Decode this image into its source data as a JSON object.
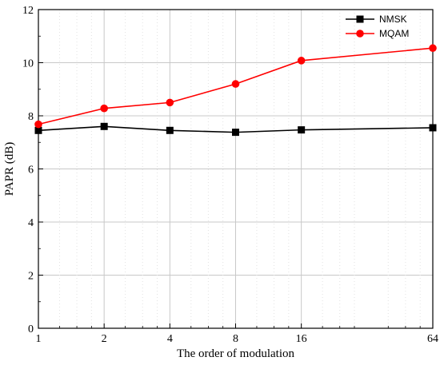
{
  "chart_data": {
    "type": "line",
    "xlabel": "The order of modulation",
    "ylabel": "PAPR (dB)",
    "x_scale": "log2",
    "xlim": [
      1,
      64
    ],
    "ylim": [
      0,
      12
    ],
    "x_ticks": [
      1,
      2,
      4,
      8,
      16,
      64
    ],
    "x_tick_labels": [
      "1",
      "2",
      "4",
      "8",
      "16",
      "64"
    ],
    "y_ticks": [
      0,
      2,
      4,
      6,
      8,
      10,
      12
    ],
    "y_tick_labels": [
      "0",
      "2",
      "4",
      "6",
      "8",
      "10",
      "12"
    ],
    "grid": true,
    "legend_position": "top-right",
    "x": [
      1,
      2,
      4,
      8,
      16,
      64
    ],
    "series": [
      {
        "name": "NMSK",
        "color": "#000000",
        "marker": "square",
        "values": [
          7.45,
          7.6,
          7.45,
          7.38,
          7.47,
          7.55
        ]
      },
      {
        "name": "MQAM",
        "color": "#ff0000",
        "marker": "circle",
        "values": [
          7.68,
          8.28,
          8.5,
          9.2,
          10.08,
          10.55
        ]
      }
    ]
  }
}
